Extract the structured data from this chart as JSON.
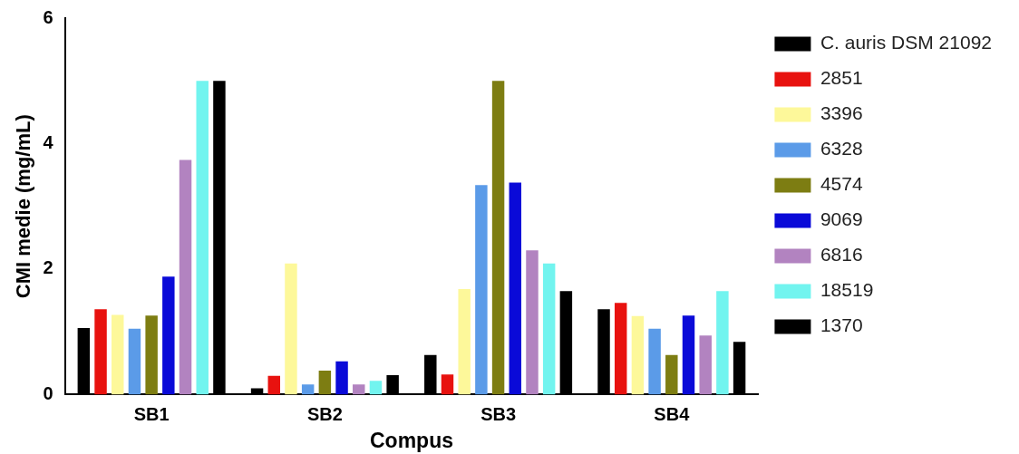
{
  "chart_data": {
    "type": "bar",
    "xlabel": "Compus",
    "ylabel": "CMI medie (mg/mL)",
    "categories": [
      "SB1",
      "SB2",
      "SB3",
      "SB4"
    ],
    "series": [
      {
        "name": "C. auris DSM 21092",
        "color": "#000000",
        "values": [
          1.06,
          0.1,
          0.63,
          1.36
        ]
      },
      {
        "name": "2851",
        "color": "#e8120f",
        "values": [
          1.36,
          0.3,
          0.32,
          1.46
        ]
      },
      {
        "name": "3396",
        "color": "#fdf89a",
        "values": [
          1.27,
          2.09,
          1.68,
          1.25
        ]
      },
      {
        "name": "6328",
        "color": "#5b9be8",
        "values": [
          1.05,
          0.16,
          3.34,
          1.05
        ]
      },
      {
        "name": "4574",
        "color": "#7d7d12",
        "values": [
          1.26,
          0.38,
          5.0,
          0.63
        ]
      },
      {
        "name": "9069",
        "color": "#0a0ad8",
        "values": [
          1.88,
          0.53,
          3.38,
          1.26
        ]
      },
      {
        "name": "6816",
        "color": "#b283c0",
        "values": [
          3.74,
          0.16,
          2.3,
          0.94
        ]
      },
      {
        "name": "18519",
        "color": "#72f4ef",
        "values": [
          5.0,
          0.22,
          2.09,
          1.65
        ]
      },
      {
        "name": "1370",
        "color": "#000000",
        "values": [
          5.0,
          0.31,
          1.65,
          0.84
        ]
      }
    ],
    "ylim": [
      0,
      6
    ],
    "yticks": [
      0,
      2,
      4,
      6
    ],
    "legend": "right"
  }
}
